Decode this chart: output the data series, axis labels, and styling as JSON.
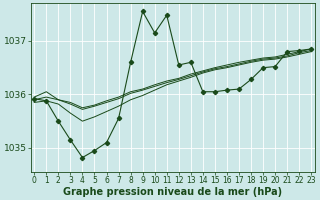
{
  "bg_color": "#cde8e8",
  "grid_color": "#b0d0d0",
  "line_color": "#1a4a1a",
  "text_color": "#1a4a1a",
  "xlabel": "Graphe pression niveau de la mer (hPa)",
  "ylim": [
    1034.55,
    1037.7
  ],
  "xlim": [
    -0.3,
    23.3
  ],
  "yticks": [
    1035,
    1036,
    1037
  ],
  "xticks": [
    0,
    1,
    2,
    3,
    4,
    5,
    6,
    7,
    8,
    9,
    10,
    11,
    12,
    13,
    14,
    15,
    16,
    17,
    18,
    19,
    20,
    21,
    22,
    23
  ],
  "title_fontsize": 7,
  "tick_fontsize": 5.5,
  "line1_x": [
    0,
    1,
    2,
    3,
    4,
    5,
    6,
    7,
    8,
    9,
    10,
    11,
    12,
    13,
    14,
    15,
    16,
    17,
    18,
    19,
    20,
    21,
    22,
    23
  ],
  "line1_y": [
    1035.95,
    1036.05,
    1035.9,
    1035.85,
    1035.75,
    1035.8,
    1035.88,
    1035.95,
    1036.05,
    1036.1,
    1036.18,
    1036.25,
    1036.3,
    1036.38,
    1036.44,
    1036.5,
    1036.55,
    1036.6,
    1036.64,
    1036.68,
    1036.7,
    1036.75,
    1036.8,
    1036.85
  ],
  "line2_x": [
    0,
    1,
    2,
    3,
    4,
    5,
    6,
    7,
    8,
    9,
    10,
    11,
    12,
    13,
    14,
    15,
    16,
    17,
    18,
    19,
    20,
    21,
    22,
    23
  ],
  "line2_y": [
    1035.9,
    1035.95,
    1035.9,
    1035.82,
    1035.72,
    1035.78,
    1035.85,
    1035.92,
    1036.02,
    1036.08,
    1036.15,
    1036.22,
    1036.28,
    1036.35,
    1036.42,
    1036.48,
    1036.52,
    1036.57,
    1036.62,
    1036.66,
    1036.68,
    1036.72,
    1036.78,
    1036.82
  ],
  "line3_x": [
    0,
    1,
    2,
    3,
    4,
    5,
    6,
    7,
    8,
    9,
    10,
    11,
    12,
    13,
    14,
    15,
    16,
    17,
    18,
    19,
    20,
    21,
    22,
    23
  ],
  "line3_y": [
    1035.85,
    1035.88,
    1035.82,
    1035.65,
    1035.5,
    1035.58,
    1035.68,
    1035.78,
    1035.9,
    1035.98,
    1036.08,
    1036.18,
    1036.25,
    1036.32,
    1036.4,
    1036.46,
    1036.5,
    1036.55,
    1036.6,
    1036.64,
    1036.66,
    1036.7,
    1036.75,
    1036.8
  ],
  "line4_x": [
    0,
    1,
    2,
    3,
    4,
    5,
    6,
    7,
    8,
    9,
    10,
    11,
    12,
    13,
    14,
    15,
    16,
    17,
    18,
    19,
    20,
    21,
    22,
    23
  ],
  "line4_y": [
    1035.92,
    1035.88,
    1035.5,
    1035.15,
    1034.82,
    1034.95,
    1035.1,
    1035.55,
    1036.6,
    1037.55,
    1037.15,
    1037.48,
    1036.55,
    1036.6,
    1036.05,
    1036.05,
    1036.08,
    1036.1,
    1036.28,
    1036.5,
    1036.52,
    1036.8,
    1036.82,
    1036.85
  ]
}
